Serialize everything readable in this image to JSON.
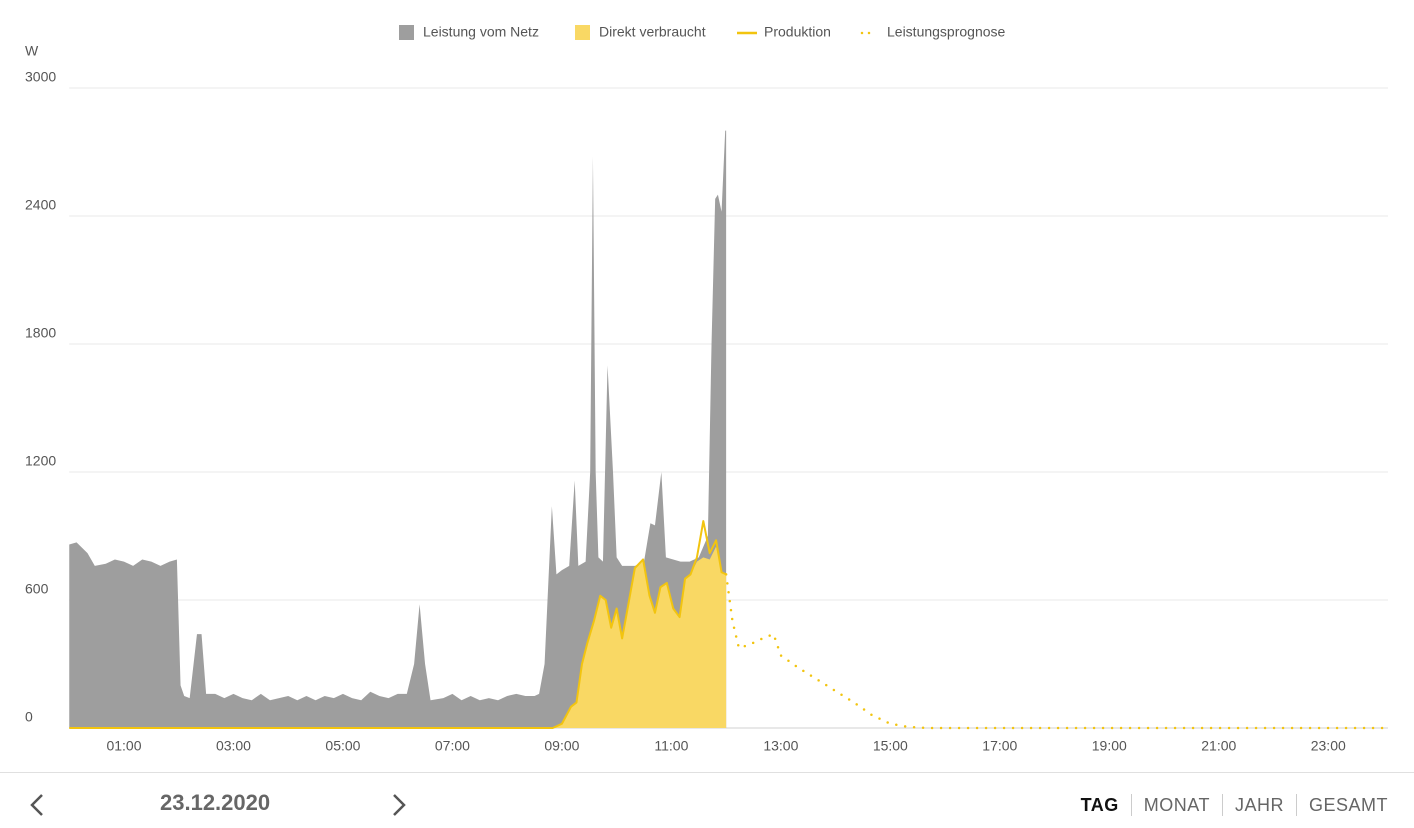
{
  "chart_data": {
    "type": "area",
    "y_label": "W",
    "xlim": [
      0,
      1440
    ],
    "ylim": [
      0,
      3000
    ],
    "yticks": [
      0,
      600,
      1200,
      1800,
      2400,
      3000
    ],
    "grid": true,
    "xticks": [
      {
        "value": 60,
        "label": "01:00"
      },
      {
        "value": 180,
        "label": "03:00"
      },
      {
        "value": 300,
        "label": "05:00"
      },
      {
        "value": 420,
        "label": "07:00"
      },
      {
        "value": 540,
        "label": "09:00"
      },
      {
        "value": 660,
        "label": "11:00"
      },
      {
        "value": 780,
        "label": "13:00"
      },
      {
        "value": 900,
        "label": "15:00"
      },
      {
        "value": 1020,
        "label": "17:00"
      },
      {
        "value": 1140,
        "label": "19:00"
      },
      {
        "value": 1260,
        "label": "21:00"
      },
      {
        "value": 1380,
        "label": "23:00"
      }
    ],
    "series": [
      {
        "name": "Leistung vom Netz",
        "color": "#9e9e9e",
        "type": "area",
        "x": [
          0,
          8,
          20,
          28,
          40,
          50,
          60,
          70,
          80,
          90,
          100,
          110,
          118,
          122,
          126,
          132,
          140,
          145,
          150,
          160,
          170,
          180,
          190,
          200,
          210,
          220,
          230,
          240,
          250,
          260,
          270,
          280,
          290,
          300,
          310,
          320,
          330,
          340,
          350,
          360,
          370,
          378,
          384,
          390,
          396,
          410,
          420,
          430,
          440,
          450,
          460,
          470,
          480,
          490,
          500,
          510,
          515,
          521,
          529,
          534,
          540,
          548,
          554,
          558,
          566,
          571,
          574,
          577,
          580,
          585,
          590,
          596,
          600,
          606,
          620,
          630,
          637,
          642,
          649,
          654,
          670,
          680,
          690,
          700,
          704,
          708,
          711,
          715,
          719,
          720
        ],
        "values": [
          860,
          870,
          820,
          760,
          770,
          790,
          780,
          760,
          790,
          780,
          760,
          780,
          790,
          200,
          150,
          140,
          440,
          440,
          160,
          160,
          140,
          160,
          140,
          130,
          160,
          130,
          140,
          150,
          130,
          150,
          130,
          150,
          140,
          160,
          140,
          130,
          170,
          150,
          140,
          160,
          160,
          300,
          580,
          300,
          130,
          140,
          160,
          130,
          150,
          130,
          140,
          130,
          150,
          160,
          150,
          150,
          160,
          300,
          1040,
          720,
          740,
          760,
          1160,
          760,
          780,
          1200,
          2680,
          1200,
          800,
          780,
          1700,
          1200,
          800,
          760,
          760,
          780,
          960,
          950,
          1200,
          800,
          780,
          780,
          800,
          900,
          1800,
          2480,
          2500,
          2420,
          2800,
          2800
        ]
      },
      {
        "name": "Direkt verbraucht",
        "color": "#f9d864",
        "type": "area",
        "x": [
          530,
          540,
          550,
          556,
          562,
          568,
          575,
          582,
          588,
          594,
          600,
          606,
          612,
          620,
          629,
          636,
          642,
          648,
          655,
          662,
          669,
          675,
          681,
          688,
          695,
          702,
          709,
          715,
          720
        ],
        "values": [
          0,
          20,
          100,
          120,
          300,
          400,
          500,
          620,
          600,
          470,
          560,
          420,
          560,
          750,
          790,
          620,
          540,
          660,
          680,
          560,
          520,
          700,
          720,
          780,
          800,
          790,
          850,
          730,
          720
        ]
      },
      {
        "name": "Produktion",
        "color": "#f2c40f",
        "type": "line",
        "x": [
          0,
          530,
          540,
          550,
          556,
          562,
          568,
          575,
          582,
          588,
          594,
          600,
          606,
          612,
          620,
          629,
          636,
          642,
          648,
          655,
          662,
          669,
          675,
          681,
          688,
          695,
          702,
          709,
          715,
          720
        ],
        "values": [
          0,
          0,
          20,
          100,
          120,
          300,
          400,
          500,
          620,
          600,
          470,
          560,
          420,
          560,
          750,
          790,
          620,
          540,
          660,
          680,
          560,
          520,
          700,
          720,
          800,
          970,
          820,
          880,
          730,
          720
        ]
      },
      {
        "name": "Leistungsprognose",
        "color": "#f2c40f",
        "type": "dotted",
        "x": [
          720,
          727,
          734,
          745,
          760,
          772,
          780,
          800,
          830,
          860,
          880,
          900,
          920,
          940,
          1440
        ],
        "values": [
          720,
          500,
          375,
          390,
          420,
          440,
          340,
          280,
          200,
          120,
          60,
          20,
          5,
          0,
          0
        ]
      }
    ]
  },
  "navigation": {
    "date": "23.12.2020",
    "tabs": [
      "TAG",
      "MONAT",
      "JAHR",
      "GESAMT"
    ],
    "active_tab": "TAG"
  }
}
